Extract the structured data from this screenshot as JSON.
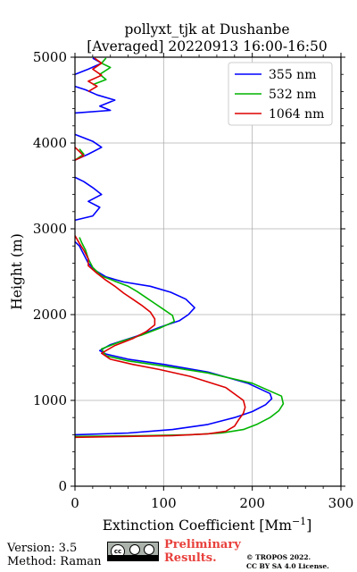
{
  "chart_data": {
    "type": "line",
    "title": "pollyxt_tjk at Dushanbe",
    "subtitle": "[Averaged] 20220913 16:00-16:50",
    "xlabel": "Extinction Coefficient [Mm⁻¹]",
    "ylabel": "Height (m)",
    "xlim": [
      0,
      300
    ],
    "ylim": [
      0,
      5000
    ],
    "xticks": [
      "0",
      "100",
      "200",
      "300"
    ],
    "yticks": [
      "0",
      "1000",
      "2000",
      "3000",
      "4000",
      "5000"
    ],
    "grid": true,
    "legend_position": "top-right",
    "series": [
      {
        "name": "355 nm",
        "color": "#0000ff",
        "points": [
          [
            0,
            600
          ],
          [
            60,
            620
          ],
          [
            110,
            660
          ],
          [
            150,
            720
          ],
          [
            180,
            800
          ],
          [
            200,
            870
          ],
          [
            215,
            950
          ],
          [
            222,
            1020
          ],
          [
            220,
            1080
          ],
          [
            195,
            1200
          ],
          [
            150,
            1330
          ],
          [
            100,
            1420
          ],
          [
            60,
            1480
          ],
          [
            35,
            1540
          ],
          [
            28,
            1580
          ],
          [
            40,
            1650
          ],
          [
            70,
            1750
          ],
          [
            95,
            1850
          ],
          [
            118,
            1930
          ],
          [
            128,
            2000
          ],
          [
            135,
            2080
          ],
          [
            125,
            2180
          ],
          [
            108,
            2260
          ],
          [
            85,
            2330
          ],
          [
            55,
            2380
          ],
          [
            35,
            2440
          ],
          [
            22,
            2520
          ],
          [
            15,
            2600
          ],
          [
            10,
            2700
          ],
          [
            5,
            2800
          ],
          [
            0,
            2850
          ],
          [
            null,
            null
          ],
          [
            0,
            3100
          ],
          [
            20,
            3150
          ],
          [
            28,
            3250
          ],
          [
            15,
            3320
          ],
          [
            30,
            3400
          ],
          [
            20,
            3480
          ],
          [
            10,
            3550
          ],
          [
            0,
            3600
          ],
          [
            null,
            null
          ],
          [
            0,
            3800
          ],
          [
            15,
            3870
          ],
          [
            30,
            3950
          ],
          [
            20,
            4020
          ],
          [
            0,
            4100
          ],
          [
            null,
            null
          ],
          [
            0,
            4350
          ],
          [
            40,
            4380
          ],
          [
            28,
            4430
          ],
          [
            45,
            4500
          ],
          [
            25,
            4560
          ],
          [
            12,
            4620
          ],
          [
            0,
            4660
          ],
          [
            null,
            null
          ],
          [
            0,
            4800
          ],
          [
            15,
            4860
          ],
          [
            30,
            4930
          ],
          [
            20,
            4990
          ]
        ]
      },
      {
        "name": "532 nm",
        "color": "#00b400",
        "points": [
          [
            0,
            580
          ],
          [
            80,
            590
          ],
          [
            130,
            600
          ],
          [
            165,
            620
          ],
          [
            190,
            660
          ],
          [
            205,
            720
          ],
          [
            220,
            800
          ],
          [
            230,
            880
          ],
          [
            235,
            960
          ],
          [
            233,
            1050
          ],
          [
            200,
            1200
          ],
          [
            150,
            1320
          ],
          [
            100,
            1400
          ],
          [
            60,
            1460
          ],
          [
            35,
            1520
          ],
          [
            30,
            1600
          ],
          [
            50,
            1680
          ],
          [
            75,
            1760
          ],
          [
            95,
            1840
          ],
          [
            112,
            1920
          ],
          [
            110,
            1990
          ],
          [
            100,
            2060
          ],
          [
            90,
            2130
          ],
          [
            80,
            2200
          ],
          [
            70,
            2270
          ],
          [
            60,
            2330
          ],
          [
            45,
            2390
          ],
          [
            30,
            2450
          ],
          [
            20,
            2550
          ],
          [
            15,
            2650
          ],
          [
            12,
            2750
          ],
          [
            8,
            2830
          ],
          [
            5,
            2900
          ],
          [
            null,
            null
          ],
          [
            0,
            3800
          ],
          [
            10,
            3870
          ],
          [
            5,
            3930
          ],
          [
            null,
            null
          ],
          [
            20,
            4680
          ],
          [
            35,
            4740
          ],
          [
            28,
            4800
          ],
          [
            40,
            4880
          ],
          [
            30,
            4930
          ],
          [
            35,
            4990
          ]
        ]
      },
      {
        "name": "1064 nm",
        "color": "#dd0000",
        "points": [
          [
            0,
            570
          ],
          [
            60,
            580
          ],
          [
            110,
            590
          ],
          [
            150,
            610
          ],
          [
            170,
            640
          ],
          [
            180,
            700
          ],
          [
            185,
            780
          ],
          [
            190,
            850
          ],
          [
            192,
            920
          ],
          [
            190,
            1000
          ],
          [
            170,
            1150
          ],
          [
            130,
            1280
          ],
          [
            95,
            1360
          ],
          [
            65,
            1420
          ],
          [
            40,
            1480
          ],
          [
            30,
            1550
          ],
          [
            45,
            1640
          ],
          [
            65,
            1720
          ],
          [
            80,
            1800
          ],
          [
            90,
            1880
          ],
          [
            90,
            1950
          ],
          [
            85,
            2030
          ],
          [
            75,
            2110
          ],
          [
            65,
            2180
          ],
          [
            55,
            2250
          ],
          [
            45,
            2330
          ],
          [
            35,
            2400
          ],
          [
            25,
            2480
          ],
          [
            15,
            2570
          ],
          [
            15,
            2650
          ],
          [
            10,
            2750
          ],
          [
            5,
            2830
          ],
          [
            0,
            2920
          ],
          [
            null,
            null
          ],
          [
            0,
            3800
          ],
          [
            10,
            3850
          ],
          [
            5,
            3900
          ],
          [
            0,
            3950
          ],
          [
            null,
            null
          ],
          [
            15,
            4600
          ],
          [
            25,
            4660
          ],
          [
            15,
            4720
          ],
          [
            30,
            4790
          ],
          [
            20,
            4860
          ],
          [
            30,
            4930
          ],
          [
            22,
            4990
          ]
        ]
      }
    ]
  },
  "footer": {
    "version": "Version: 3.5",
    "method": "Method: Raman",
    "license_badge": {
      "cc": "cc",
      "band_text": "BY SA"
    },
    "preliminary_line1": "Preliminary",
    "preliminary_line2": "Results.",
    "copyright_line1": "© TROPOS 2022.",
    "copyright_line2": "CC BY SA 4.0 License."
  }
}
